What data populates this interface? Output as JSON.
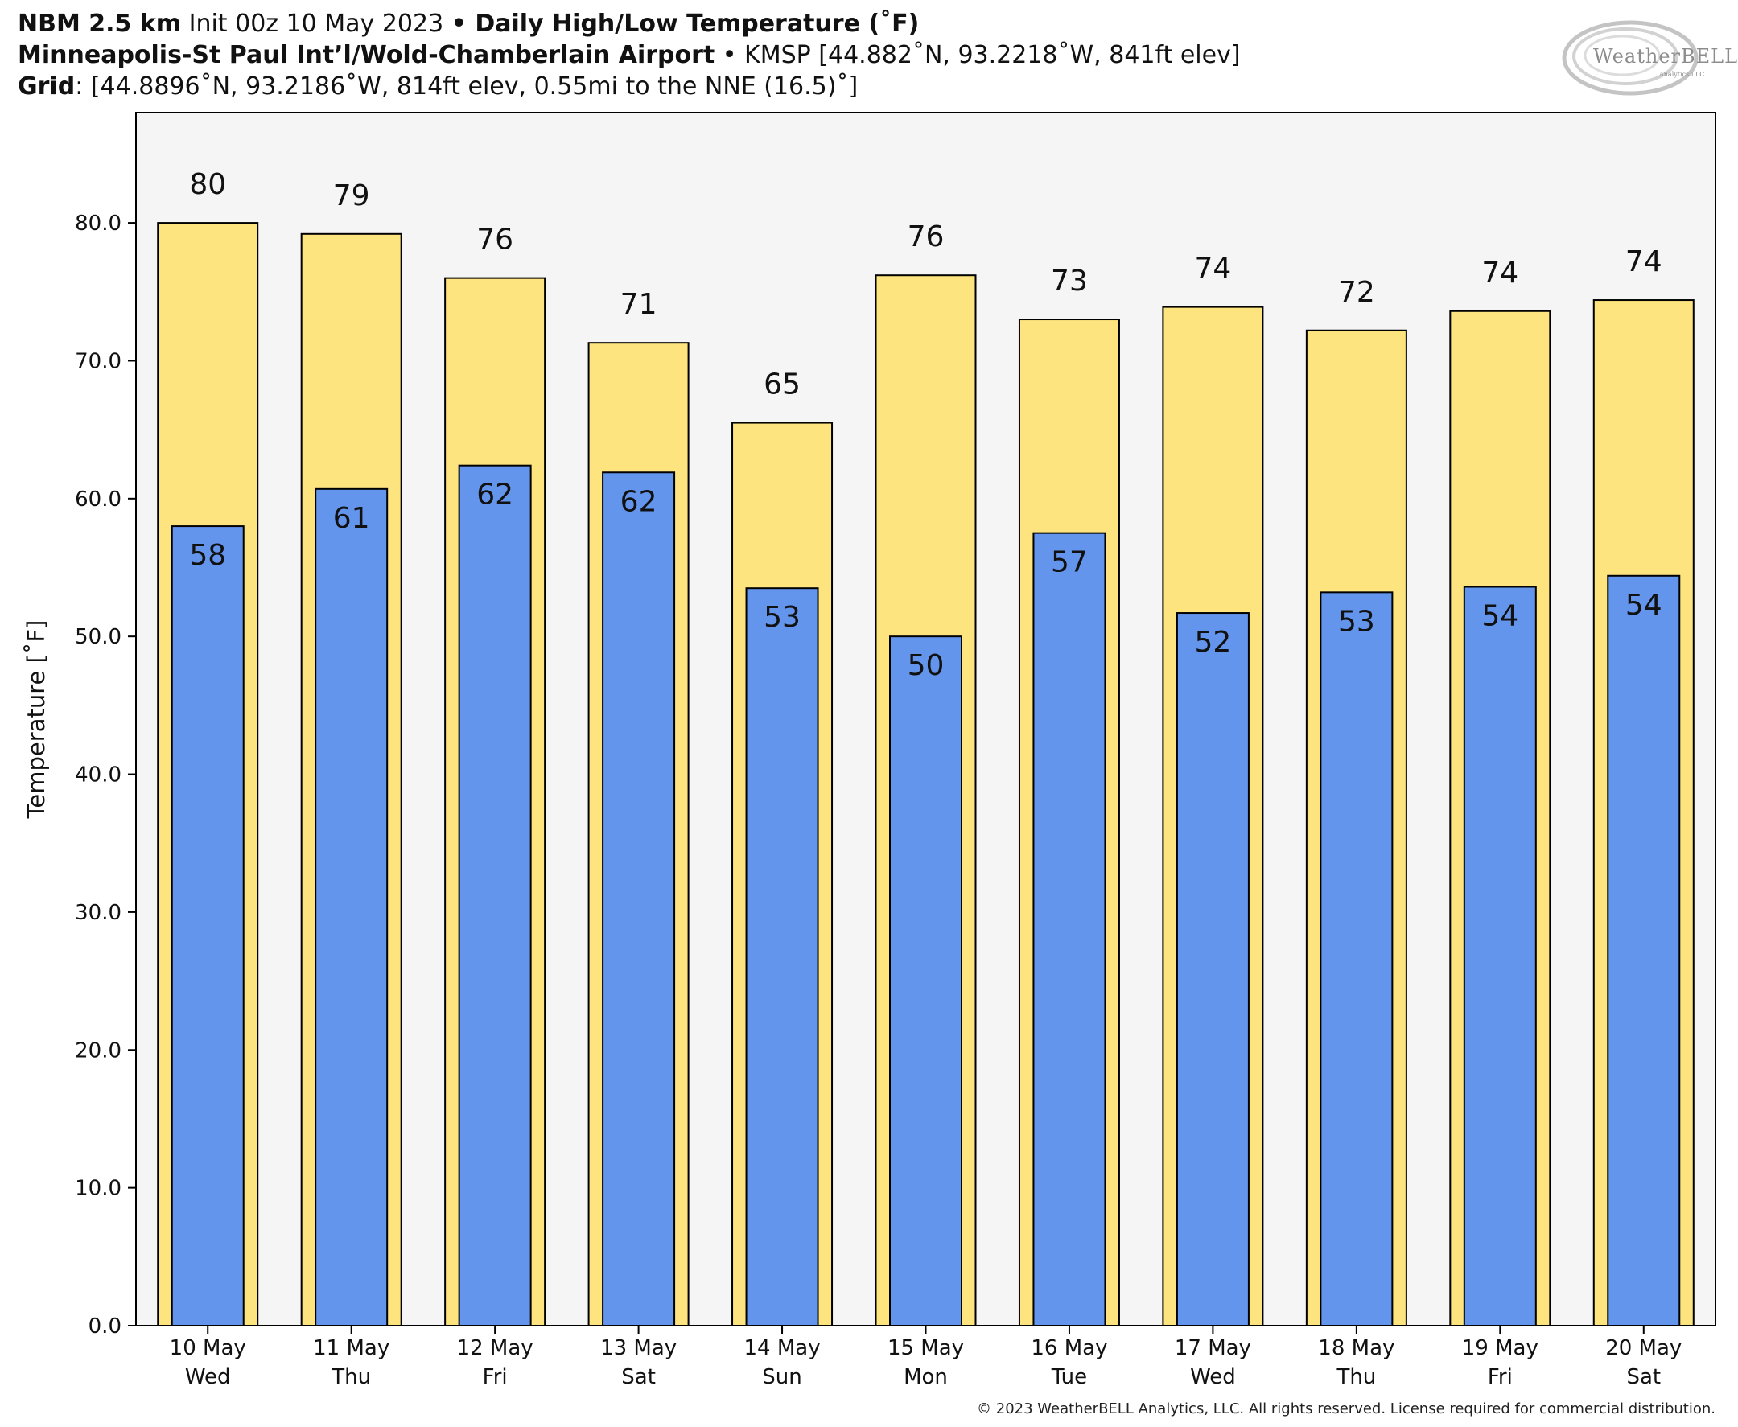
{
  "header": {
    "line1": {
      "model": "NBM 2.5 km",
      "init": " Init 00z 10 May 2023 ",
      "sep": "•",
      "product": " Daily High/Low Temperature (˚F)"
    },
    "line2": {
      "station": "Minneapolis-St Paul Int’l/Wold-Chamberlain Airport",
      "sep": " • ",
      "details": "KMSP [44.882˚N, 93.2218˚W, 841ft elev]"
    },
    "line3": {
      "label": "Grid",
      "details": ": [44.8896˚N, 93.2186˚W, 814ft elev, 0.55mi to the NNE (16.5)˚]"
    }
  },
  "logo": {
    "text": "WeatherBELL",
    "sub": "Analytics LLC"
  },
  "copyright": "© 2023 WeatherBELL Analytics, LLC. All rights reserved. License required for commercial distribution.",
  "chart_data": {
    "type": "bar",
    "ylabel": "Temperature [˚F]",
    "ylim": [
      0,
      88
    ],
    "yticks": [
      0,
      10,
      20,
      30,
      40,
      50,
      60,
      70,
      80
    ],
    "ytick_labels": [
      "0.0",
      "10.0",
      "20.0",
      "30.0",
      "40.0",
      "50.0",
      "60.0",
      "70.0",
      "80.0"
    ],
    "grid": false,
    "categories": [
      [
        "10 May",
        "Wed"
      ],
      [
        "11 May",
        "Thu"
      ],
      [
        "12 May",
        "Fri"
      ],
      [
        "13 May",
        "Sat"
      ],
      [
        "14 May",
        "Sun"
      ],
      [
        "15 May",
        "Mon"
      ],
      [
        "16 May",
        "Tue"
      ],
      [
        "17 May",
        "Wed"
      ],
      [
        "18 May",
        "Thu"
      ],
      [
        "19 May",
        "Fri"
      ],
      [
        "20 May",
        "Sat"
      ]
    ],
    "series": [
      {
        "values": [
          80.0,
          79.2,
          76.0,
          71.3,
          65.5,
          76.2,
          73.0,
          73.9,
          72.2,
          73.6,
          74.4
        ],
        "labels": [
          "80",
          "79",
          "76",
          "71",
          "65",
          "76",
          "73",
          "74",
          "72",
          "74",
          "74"
        ],
        "color": "#fde47e"
      },
      {
        "values": [
          58.0,
          60.7,
          62.4,
          61.9,
          53.5,
          50.0,
          57.5,
          51.7,
          53.2,
          53.6,
          54.4
        ],
        "labels": [
          "58",
          "61",
          "62",
          "62",
          "53",
          "50",
          "57",
          "52",
          "53",
          "54",
          "54"
        ],
        "color": "#6495ed"
      }
    ],
    "plot_background": "#f5f5f6"
  }
}
